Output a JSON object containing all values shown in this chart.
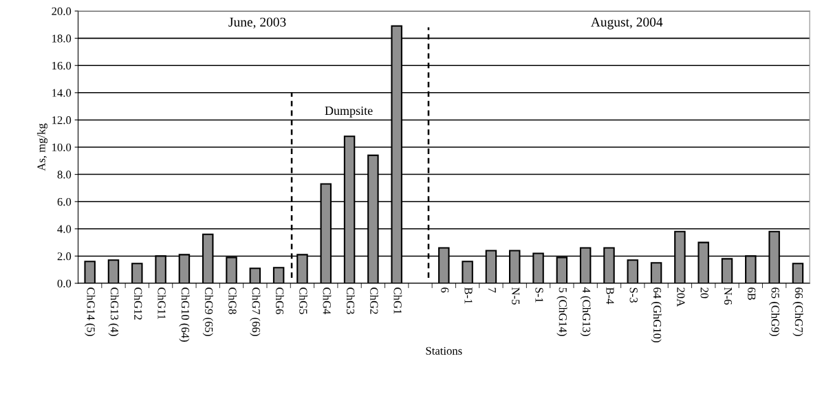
{
  "chart_data": {
    "type": "bar",
    "xlabel": "Stations",
    "ylabel": "As, mg/kg",
    "categories": [
      "ChG14 (5)",
      "ChG13 (4)",
      "ChG12",
      "ChG11",
      "ChG10 (64)",
      "ChG9 (65)",
      "ChG8",
      "ChG7 (66)",
      "ChG6",
      "ChG5",
      "ChG4",
      "ChG3",
      "ChG2",
      "ChG1",
      null,
      "6",
      "B-1",
      "7",
      "N-5",
      "S-1",
      "5 (ChG14)",
      "4 (ChG13)",
      "B-4",
      "S-3",
      "64 (GhG10)",
      "20A",
      "20",
      "N-6",
      "6B",
      "65 (ChG9)",
      "66 (ChG7)"
    ],
    "values": [
      1.6,
      1.7,
      1.45,
      2.0,
      2.1,
      3.6,
      1.9,
      1.1,
      1.15,
      2.1,
      7.3,
      10.8,
      9.4,
      18.9,
      null,
      2.6,
      1.6,
      2.4,
      2.4,
      2.2,
      1.9,
      2.6,
      2.6,
      1.7,
      1.5,
      3.8,
      3.0,
      1.8,
      2.0,
      3.8,
      1.45
    ],
    "color": "#909090",
    "ylim": [
      0,
      20
    ],
    "yticks": [
      {
        "value": 0,
        "label": "0.0"
      },
      {
        "value": 2,
        "label": "2.0"
      },
      {
        "value": 4,
        "label": "4.0"
      },
      {
        "value": 6,
        "label": "6.0"
      },
      {
        "value": 8,
        "label": "8.0"
      },
      {
        "value": 10,
        "label": "10.0"
      },
      {
        "value": 12,
        "label": "12.0"
      },
      {
        "value": 14,
        "label": "14.0"
      },
      {
        "value": 16,
        "label": "16.0"
      },
      {
        "value": 18,
        "label": "18.0"
      },
      {
        "value": 20,
        "label": "20.0"
      }
    ],
    "grid": "y",
    "annotations": [
      "June, 2003",
      "August, 2004",
      "Dumpsite"
    ]
  }
}
